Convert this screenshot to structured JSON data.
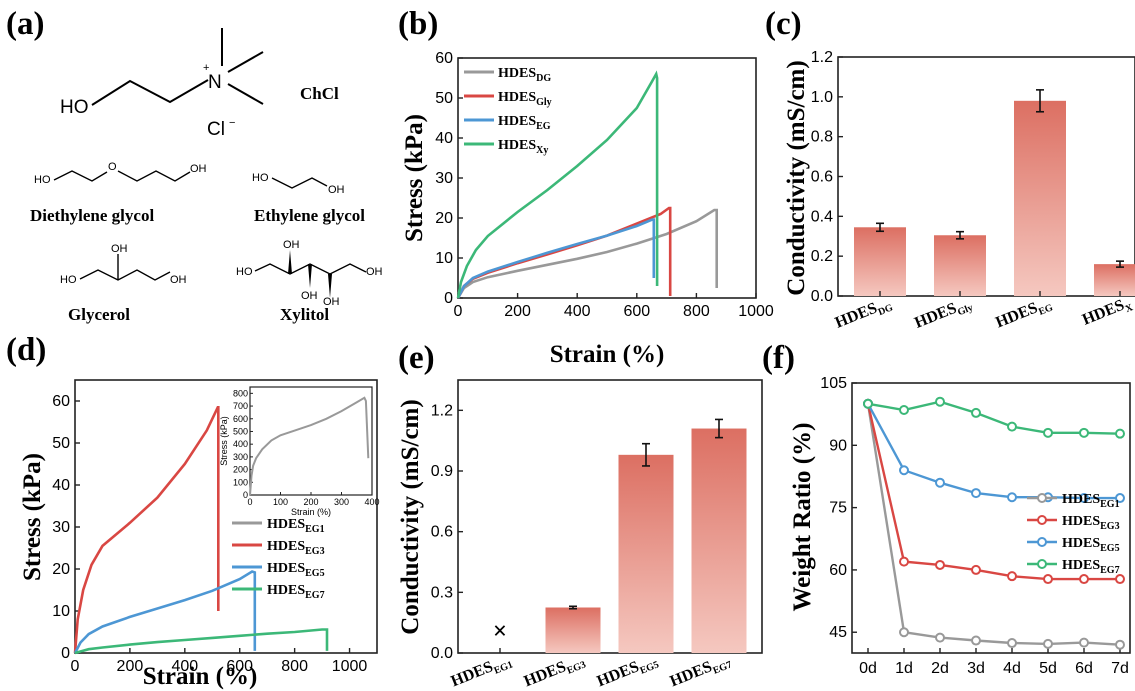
{
  "panels": {
    "a": {
      "letter": "(a)",
      "chcl": {
        "ho": "HO",
        "n": "N",
        "plus": "+",
        "cl": "Cl",
        "cl_charge": "−",
        "name": "ChCl"
      },
      "dg": {
        "ho_left": "HO",
        "o_mid": "O",
        "oh_right": "OH",
        "name": "Diethylene glycol"
      },
      "eg": {
        "ho_left": "HO",
        "oh_right": "OH",
        "name": "Ethylene glycol"
      },
      "gly": {
        "ho_left": "HO",
        "oh_top": "OH",
        "oh_right": "OH",
        "name": "Glycerol"
      },
      "xy": {
        "ho_left": "HO",
        "oh_top1": "OH",
        "oh_bot1": "OH",
        "oh_bot2": "OH",
        "oh_right": "OH",
        "name": "Xylitol"
      }
    },
    "b": {
      "letter": "(b)"
    },
    "c": {
      "letter": "(c)"
    },
    "d": {
      "letter": "(d)"
    },
    "e": {
      "letter": "(e)"
    },
    "f": {
      "letter": "(f)"
    }
  },
  "chart_data": [
    {
      "id": "b",
      "type": "line",
      "xlabel": "Strain (%)",
      "ylabel": "Stress (kPa)",
      "xlim": [
        0,
        1000
      ],
      "ylim": [
        0,
        60
      ],
      "xticks": [
        0,
        200,
        400,
        600,
        800,
        1000
      ],
      "yticks": [
        0,
        10,
        20,
        30,
        40,
        50,
        60
      ],
      "legend_position": "top-left",
      "series": [
        {
          "name": "HDES",
          "sub": "DG",
          "color": "#999999",
          "x": [
            0,
            20,
            50,
            100,
            200,
            300,
            400,
            500,
            600,
            700,
            800,
            860,
            868,
            868
          ],
          "y": [
            0,
            2.5,
            4,
            5.2,
            6.8,
            8.3,
            9.8,
            11.5,
            13.6,
            16.0,
            19.2,
            22.0,
            22.0,
            2.5
          ]
        },
        {
          "name": "HDES",
          "sub": "Gly",
          "color": "#d94743",
          "x": [
            0,
            20,
            50,
            100,
            200,
            300,
            400,
            500,
            600,
            680,
            708,
            712,
            712
          ],
          "y": [
            0,
            3,
            4.8,
            6.3,
            8.7,
            10.9,
            13.2,
            15.6,
            18.6,
            21.0,
            22.5,
            22.5,
            0.5
          ]
        },
        {
          "name": "HDES",
          "sub": "EG",
          "color": "#4d97d4",
          "x": [
            0,
            20,
            50,
            100,
            200,
            300,
            400,
            500,
            600,
            652,
            657,
            657
          ],
          "y": [
            0,
            3,
            5,
            6.6,
            9.0,
            11.3,
            13.5,
            15.6,
            18.0,
            19.6,
            19.6,
            5
          ]
        },
        {
          "name": "HDES",
          "sub": "Xy",
          "color": "#3cb878",
          "x": [
            0,
            10,
            30,
            60,
            100,
            200,
            300,
            400,
            500,
            600,
            650,
            665,
            668,
            668
          ],
          "y": [
            0,
            4,
            8,
            12,
            15.5,
            21.5,
            27,
            33,
            39.5,
            47.5,
            54,
            56,
            55,
            3
          ]
        }
      ]
    },
    {
      "id": "c",
      "type": "bar",
      "ylabel": "Conductivity (mS/cm)",
      "ylim": [
        0,
        1.2
      ],
      "yticks": [
        "0.0",
        "0.2",
        "0.4",
        "0.6",
        "0.8",
        "1.0",
        "1.2"
      ],
      "categories": [
        {
          "main": "HDES",
          "sub": "DG"
        },
        {
          "main": "HDES",
          "sub": "Gly"
        },
        {
          "main": "HDES",
          "sub": "EG"
        },
        {
          "main": "HDES",
          "sub": "X"
        }
      ],
      "values": [
        0.345,
        0.305,
        0.98,
        0.16
      ],
      "errors": [
        0.02,
        0.018,
        0.055,
        0.015
      ],
      "bar_color_top": "#dc6f62",
      "bar_color_bottom": "#f5c8c0"
    },
    {
      "id": "d",
      "type": "line",
      "xlabel": "Strain (%)",
      "ylabel": "Stress (kPa)",
      "xlim": [
        0,
        1100
      ],
      "ylim": [
        0,
        65
      ],
      "xticks": [
        0,
        200,
        400,
        600,
        800,
        1000
      ],
      "yticks": [
        0,
        10,
        20,
        30,
        40,
        50,
        60
      ],
      "legend_position": "right",
      "series": [
        {
          "name": "HDES",
          "sub": "EG1",
          "color": "#999999",
          "x": [],
          "y": []
        },
        {
          "name": "HDES",
          "sub": "EG3",
          "color": "#d94743",
          "x": [
            0,
            10,
            30,
            60,
            100,
            200,
            300,
            400,
            480,
            520,
            522,
            522
          ],
          "y": [
            0,
            8,
            15,
            21,
            25.5,
            31,
            37,
            45,
            53,
            58.5,
            58.5,
            10
          ]
        },
        {
          "name": "HDES",
          "sub": "EG5",
          "color": "#4d97d4",
          "x": [
            0,
            20,
            50,
            100,
            200,
            300,
            400,
            500,
            600,
            645,
            655,
            655
          ],
          "y": [
            0,
            2.5,
            4.5,
            6.3,
            8.6,
            10.6,
            12.6,
            14.8,
            17.6,
            19.4,
            19.2,
            0.5
          ]
        },
        {
          "name": "HDES",
          "sub": "EG7",
          "color": "#3cb878",
          "x": [
            0,
            50,
            100,
            200,
            300,
            400,
            500,
            600,
            700,
            800,
            900,
            918,
            918
          ],
          "y": [
            0,
            0.9,
            1.3,
            2.0,
            2.6,
            3.1,
            3.6,
            4.1,
            4.6,
            5.0,
            5.6,
            5.6,
            0.5
          ]
        }
      ],
      "inset": {
        "xlabel": "Strain (%)",
        "ylabel": "Stress (kPa)",
        "xlim": [
          0,
          400
        ],
        "ylim": [
          0,
          850
        ],
        "xticks": [
          0,
          100,
          200,
          300,
          400
        ],
        "yticks": [
          0,
          100,
          200,
          300,
          400,
          500,
          600,
          700,
          800
        ],
        "series": [
          {
            "sub": "EG1",
            "color": "#999999",
            "x": [
              0,
              5,
              10,
              20,
              40,
              70,
              100,
              150,
              200,
              250,
              300,
              350,
              375,
              380,
              388
            ],
            "y": [
              0,
              150,
              230,
              290,
              360,
              430,
              470,
              510,
              550,
              600,
              660,
              730,
              765,
              740,
              290
            ]
          }
        ]
      }
    },
    {
      "id": "e",
      "type": "bar",
      "ylabel": "Conductivity (mS/cm)",
      "ylim": [
        0,
        1.35
      ],
      "yticks": [
        "0.0",
        "0.3",
        "0.6",
        "0.9",
        "1.2"
      ],
      "categories": [
        {
          "main": "HDES",
          "sub": "EG1"
        },
        {
          "main": "HDES",
          "sub": "EG3"
        },
        {
          "main": "HDES",
          "sub": "EG5"
        },
        {
          "main": "HDES",
          "sub": "EG7"
        }
      ],
      "values": [
        null,
        0.225,
        0.98,
        1.11
      ],
      "errors": [
        null,
        0.006,
        0.055,
        0.045
      ],
      "missing_marker": "×",
      "bar_color_top": "#dc6f62",
      "bar_color_bottom": "#f5c8c0"
    },
    {
      "id": "f",
      "type": "line",
      "ylabel": "Weight Ratio (%)",
      "ylim": [
        40,
        105
      ],
      "yticks": [
        45,
        60,
        75,
        90,
        105
      ],
      "categories": [
        "0d",
        "1d",
        "2d",
        "3d",
        "4d",
        "5d",
        "6d",
        "7d"
      ],
      "legend_position": "right",
      "series": [
        {
          "name": "HDES",
          "sub": "EG1",
          "color": "#999999",
          "values": [
            100,
            45,
            43.7,
            43,
            42.4,
            42.2,
            42.5,
            42
          ]
        },
        {
          "name": "HDES",
          "sub": "EG3",
          "color": "#d94743",
          "values": [
            100,
            62,
            61.2,
            60,
            58.5,
            57.8,
            57.8,
            57.8
          ]
        },
        {
          "name": "HDES",
          "sub": "EG5",
          "color": "#4d97d4",
          "values": [
            100,
            84,
            81,
            78.5,
            77.5,
            77.5,
            77.3,
            77.3
          ]
        },
        {
          "name": "HDES",
          "sub": "EG7",
          "color": "#3cb878",
          "values": [
            100,
            98.5,
            100.5,
            97.8,
            94.5,
            93,
            93,
            92.8
          ]
        }
      ]
    }
  ]
}
